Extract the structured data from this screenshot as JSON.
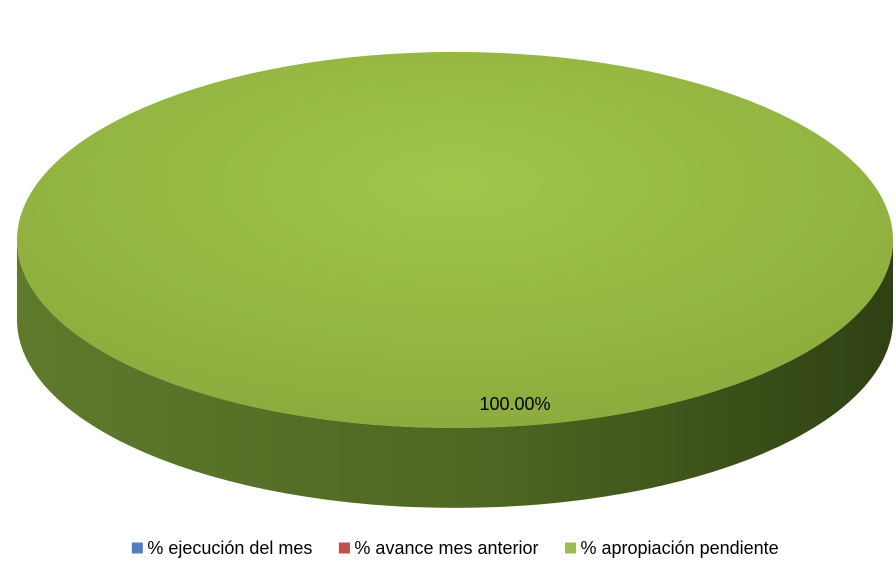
{
  "chart_data": {
    "type": "pie",
    "three_d": true,
    "categories": [
      "% ejecución del mes",
      "% avance mes anterior",
      "% apropiación pendiente"
    ],
    "values": [
      0,
      0,
      100
    ],
    "value_labels": [
      null,
      null,
      "100.00%"
    ],
    "colors": [
      "#4f81bd",
      "#c0504d",
      "#9bbb59"
    ],
    "legend": "bottom"
  }
}
